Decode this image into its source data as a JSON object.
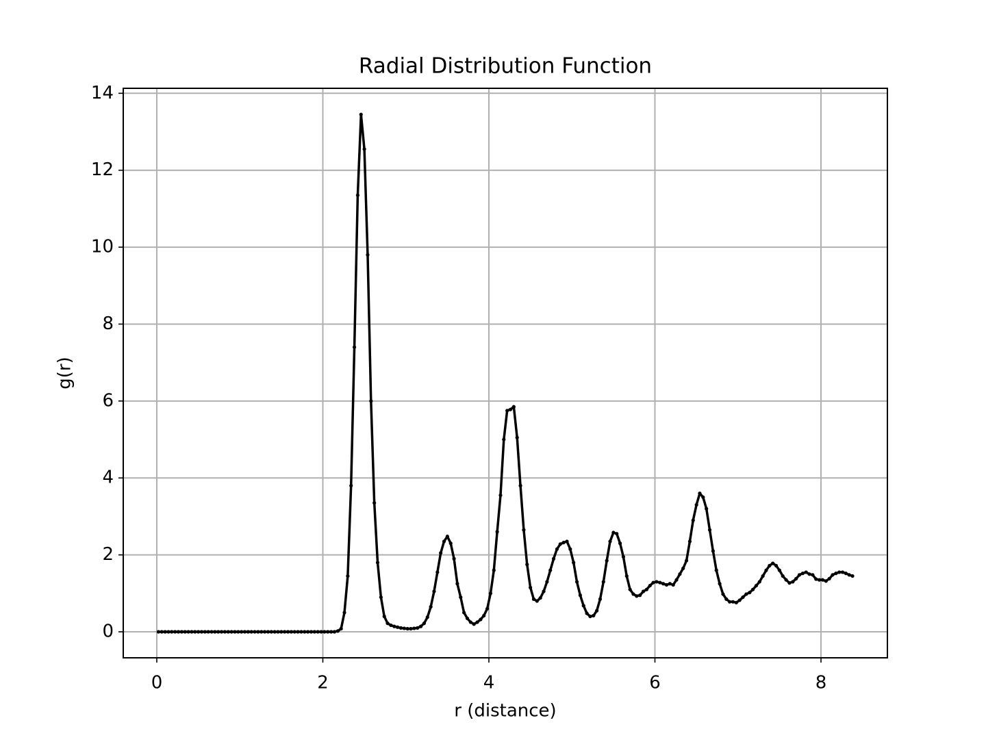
{
  "chart_data": {
    "type": "line",
    "title": "Radial Distribution Function",
    "x_label": "r (distance)",
    "y_label": "g(r)",
    "x": [
      0.02,
      0.06,
      0.1,
      0.14,
      0.18,
      0.22,
      0.26,
      0.3,
      0.34,
      0.38,
      0.42,
      0.46,
      0.5,
      0.54,
      0.58,
      0.62,
      0.66,
      0.7,
      0.74,
      0.78,
      0.82,
      0.86,
      0.9,
      0.94,
      0.98,
      1.02,
      1.06,
      1.1,
      1.14,
      1.18,
      1.22,
      1.26,
      1.3,
      1.34,
      1.38,
      1.42,
      1.46,
      1.5,
      1.54,
      1.58,
      1.62,
      1.66,
      1.7,
      1.74,
      1.78,
      1.82,
      1.86,
      1.9,
      1.94,
      1.98,
      2.02,
      2.06,
      2.1,
      2.14,
      2.18,
      2.22,
      2.26,
      2.3,
      2.34,
      2.38,
      2.42,
      2.46,
      2.5,
      2.54,
      2.58,
      2.62,
      2.66,
      2.7,
      2.74,
      2.78,
      2.82,
      2.86,
      2.9,
      2.94,
      2.98,
      3.02,
      3.06,
      3.1,
      3.14,
      3.18,
      3.22,
      3.26,
      3.3,
      3.34,
      3.38,
      3.42,
      3.46,
      3.5,
      3.54,
      3.58,
      3.62,
      3.66,
      3.7,
      3.74,
      3.78,
      3.82,
      3.86,
      3.9,
      3.94,
      3.98,
      4.02,
      4.06,
      4.1,
      4.14,
      4.18,
      4.22,
      4.26,
      4.3,
      4.34,
      4.38,
      4.42,
      4.46,
      4.5,
      4.54,
      4.58,
      4.62,
      4.66,
      4.7,
      4.74,
      4.78,
      4.82,
      4.86,
      4.9,
      4.94,
      4.98,
      5.02,
      5.06,
      5.1,
      5.14,
      5.18,
      5.22,
      5.26,
      5.3,
      5.34,
      5.38,
      5.42,
      5.46,
      5.5,
      5.54,
      5.58,
      5.62,
      5.66,
      5.7,
      5.74,
      5.78,
      5.82,
      5.86,
      5.9,
      5.94,
      5.98,
      6.02,
      6.06,
      6.1,
      6.14,
      6.18,
      6.22,
      6.26,
      6.3,
      6.34,
      6.38,
      6.42,
      6.46,
      6.5,
      6.54,
      6.58,
      6.62,
      6.66,
      6.7,
      6.74,
      6.78,
      6.82,
      6.86,
      6.9,
      6.94,
      6.98,
      7.02,
      7.06,
      7.1,
      7.14,
      7.18,
      7.22,
      7.26,
      7.3,
      7.34,
      7.38,
      7.42,
      7.46,
      7.5,
      7.54,
      7.58,
      7.62,
      7.66,
      7.7,
      7.74,
      7.78,
      7.82,
      7.86,
      7.9,
      7.94,
      7.98,
      8.02,
      8.06,
      8.1,
      8.14,
      8.18,
      8.22,
      8.26,
      8.3,
      8.34,
      8.38
    ],
    "series": [
      {
        "color": "#000000",
        "values": [
          0,
          0,
          0,
          0,
          0,
          0,
          0,
          0,
          0,
          0,
          0,
          0,
          0,
          0,
          0,
          0,
          0,
          0,
          0,
          0,
          0,
          0,
          0,
          0,
          0,
          0,
          0,
          0,
          0,
          0,
          0,
          0,
          0,
          0,
          0,
          0,
          0,
          0,
          0,
          0,
          0,
          0,
          0,
          0,
          0,
          0,
          0,
          0,
          0,
          0,
          0,
          0,
          0,
          0,
          0.02,
          0.08,
          0.5,
          1.45,
          3.8,
          7.4,
          11.35,
          13.45,
          12.55,
          9.8,
          6.0,
          3.35,
          1.8,
          0.9,
          0.4,
          0.22,
          0.17,
          0.14,
          0.12,
          0.1,
          0.09,
          0.08,
          0.08,
          0.09,
          0.1,
          0.14,
          0.22,
          0.38,
          0.65,
          1.05,
          1.55,
          2.05,
          2.35,
          2.48,
          2.3,
          1.9,
          1.25,
          0.9,
          0.5,
          0.35,
          0.25,
          0.2,
          0.25,
          0.32,
          0.42,
          0.6,
          1.0,
          1.6,
          2.6,
          3.55,
          5.0,
          5.75,
          5.78,
          5.85,
          5.05,
          3.8,
          2.65,
          1.75,
          1.15,
          0.85,
          0.8,
          0.88,
          1.05,
          1.3,
          1.6,
          1.9,
          2.15,
          2.28,
          2.32,
          2.35,
          2.15,
          1.8,
          1.3,
          0.95,
          0.68,
          0.48,
          0.4,
          0.42,
          0.55,
          0.85,
          1.3,
          1.85,
          2.35,
          2.58,
          2.55,
          2.3,
          1.95,
          1.45,
          1.1,
          0.98,
          0.93,
          0.95,
          1.05,
          1.1,
          1.2,
          1.28,
          1.3,
          1.28,
          1.25,
          1.22,
          1.25,
          1.22,
          1.35,
          1.5,
          1.65,
          1.85,
          2.35,
          2.9,
          3.3,
          3.6,
          3.5,
          3.2,
          2.65,
          2.1,
          1.6,
          1.25,
          0.98,
          0.85,
          0.78,
          0.78,
          0.76,
          0.82,
          0.9,
          0.98,
          1.02,
          1.1,
          1.2,
          1.3,
          1.45,
          1.6,
          1.72,
          1.78,
          1.72,
          1.6,
          1.45,
          1.35,
          1.27,
          1.3,
          1.38,
          1.48,
          1.52,
          1.55,
          1.5,
          1.48,
          1.37,
          1.35,
          1.35,
          1.32,
          1.38,
          1.48,
          1.52,
          1.55,
          1.55,
          1.52,
          1.48,
          1.45
        ]
      }
    ],
    "xlim": [
      -0.404,
      8.8
    ],
    "ylim": [
      -0.676,
      14.13
    ],
    "xticks": [
      0,
      2,
      4,
      6,
      8
    ],
    "yticks": [
      0,
      2,
      4,
      6,
      8,
      10,
      12,
      14
    ],
    "grid": true
  }
}
